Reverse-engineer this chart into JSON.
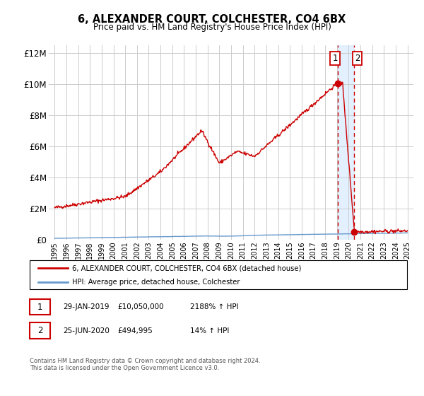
{
  "title": "6, ALEXANDER COURT, COLCHESTER, CO4 6BX",
  "subtitle": "Price paid vs. HM Land Registry's House Price Index (HPI)",
  "legend_line1": "6, ALEXANDER COURT, COLCHESTER, CO4 6BX (detached house)",
  "legend_line2": "HPI: Average price, detached house, Colchester",
  "footer": "Contains HM Land Registry data © Crown copyright and database right 2024.\nThis data is licensed under the Open Government Licence v3.0.",
  "annotation1_date": "29-JAN-2019",
  "annotation1_price": "£10,050,000",
  "annotation1_hpi": "2188% ↑ HPI",
  "annotation2_date": "25-JUN-2020",
  "annotation2_price": "£494,995",
  "annotation2_hpi": "14% ↑ HPI",
  "point1_x": 2019.08,
  "point1_y": 10050000,
  "point2_x": 2020.48,
  "point2_y": 494995,
  "ylim": [
    0,
    12500000
  ],
  "xlim": [
    1994.5,
    2025.5
  ],
  "yticks": [
    0,
    2000000,
    4000000,
    6000000,
    8000000,
    10000000,
    12000000
  ],
  "ytick_labels": [
    "£0",
    "£2M",
    "£4M",
    "£6M",
    "£8M",
    "£10M",
    "£12M"
  ],
  "xticks": [
    1995,
    1996,
    1997,
    1998,
    1999,
    2000,
    2001,
    2002,
    2003,
    2004,
    2005,
    2006,
    2007,
    2008,
    2009,
    2010,
    2011,
    2012,
    2013,
    2014,
    2015,
    2016,
    2017,
    2018,
    2019,
    2020,
    2021,
    2022,
    2023,
    2024,
    2025
  ],
  "line_color_red": "#cc0000",
  "line_color_blue": "#6699cc",
  "bg_color": "#ffffff",
  "grid_color": "#cccccc",
  "shade_color": "#ddeeff"
}
